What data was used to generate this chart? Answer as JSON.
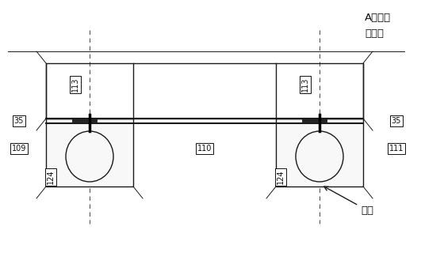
{
  "bg_color": "#ffffff",
  "line_color": "#1a1a1a",
  "dashed_color": "#555555",
  "label_color": "#111111",
  "fig_width": 5.6,
  "fig_height": 3.48,
  "dpi": 100,
  "annotations": {
    "title_line1": "A平面磨",
    "title_line2": "光顶紧",
    "bevel": "坡口",
    "label_113_left": "113",
    "label_113_right": "113",
    "label_35_left": "35",
    "label_35_right": "35",
    "label_109": "109",
    "label_110": "110",
    "label_111": "111",
    "label_124_left": "124",
    "label_124_right": "124"
  }
}
